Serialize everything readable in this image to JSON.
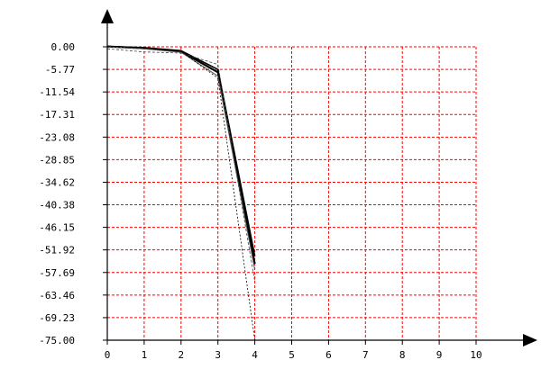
{
  "chart_data": {
    "type": "line",
    "title": "",
    "xlabel": "",
    "ylabel": "",
    "xlim": [
      0,
      10
    ],
    "ylim": [
      -75,
      0
    ],
    "x_ticks": [
      0,
      1,
      2,
      3,
      4,
      5,
      6,
      7,
      8,
      9,
      10
    ],
    "x_tick_labels": [
      "0",
      "1",
      "2",
      "3",
      "4",
      "5",
      "6",
      "7",
      "8",
      "9",
      "10"
    ],
    "y_ticks": [
      0,
      -5.77,
      -11.54,
      -17.31,
      -23.08,
      -28.85,
      -34.62,
      -40.38,
      -46.15,
      -51.92,
      -57.69,
      -63.46,
      -69.23,
      -75
    ],
    "y_tick_labels": [
      "0.00",
      "-5.77",
      "-11.54",
      "-17.31",
      "-23.08",
      "-28.85",
      "-34.62",
      "-40.38",
      "-46.15",
      "-51.92",
      "-57.69",
      "-63.46",
      "-69.23",
      "-75.00"
    ],
    "grid": true,
    "grid_color": "#ff0000",
    "axis_color": "#000000",
    "legend": "none",
    "series": [
      {
        "x": [
          0,
          1,
          2,
          3,
          4
        ],
        "y": [
          0.1,
          -0.4,
          -1.2,
          -6.5,
          -55.5
        ],
        "color": "#000000",
        "width": 2.2,
        "dash": "none"
      },
      {
        "x": [
          0,
          1,
          2,
          3,
          4
        ],
        "y": [
          0.1,
          -0.2,
          -1.0,
          -5.8,
          -53.5
        ],
        "color": "#000000",
        "width": 1.6,
        "dash": "none"
      },
      {
        "x": [
          0,
          1,
          2,
          3,
          4
        ],
        "y": [
          0.0,
          -0.5,
          -1.4,
          -7.5,
          -57.0
        ],
        "color": "#555555",
        "width": 1,
        "dash": "none"
      },
      {
        "x": [
          0,
          1,
          2,
          3,
          4
        ],
        "y": [
          -0.5,
          -1.3,
          -1.6,
          -4.5,
          -60.0
        ],
        "color": "#444444",
        "width": 0.8,
        "dash": "3,2"
      },
      {
        "x": [
          0,
          1,
          2,
          3,
          4
        ],
        "y": [
          0.0,
          -0.3,
          -1.2,
          -8.0,
          -75.0
        ],
        "color": "#000000",
        "width": 0.8,
        "dash": "2,2"
      }
    ]
  }
}
